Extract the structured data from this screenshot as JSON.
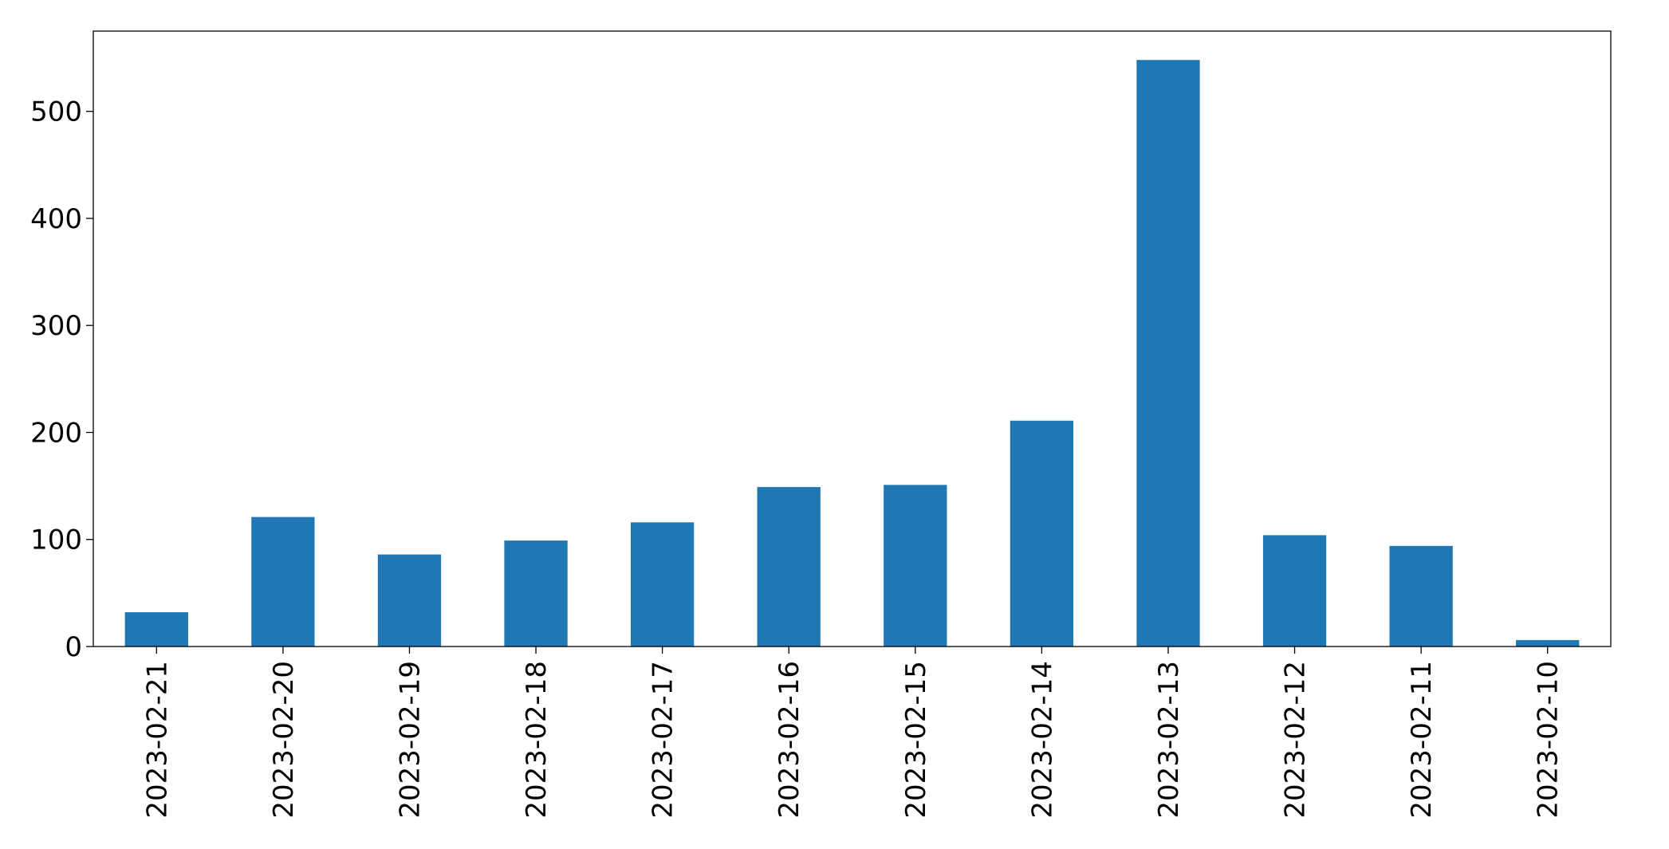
{
  "chart_data": {
    "type": "bar",
    "title": "",
    "xlabel": "",
    "ylabel": "",
    "categories": [
      "2023-02-21",
      "2023-02-20",
      "2023-02-19",
      "2023-02-18",
      "2023-02-17",
      "2023-02-16",
      "2023-02-15",
      "2023-02-14",
      "2023-02-13",
      "2023-02-12",
      "2023-02-11",
      "2023-02-10"
    ],
    "values": [
      32,
      121,
      86,
      99,
      116,
      149,
      151,
      211,
      548,
      104,
      94,
      6
    ],
    "ylim": [
      0,
      575
    ],
    "yticks": [
      0,
      100,
      200,
      300,
      400,
      500
    ],
    "grid": false,
    "legend": "none",
    "bar_color": "#1f77b4"
  }
}
